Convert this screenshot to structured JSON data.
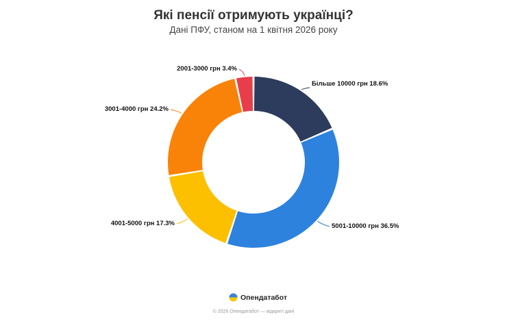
{
  "chart_data": {
    "type": "pie",
    "title": "Які пенсії отримують українці?",
    "subtitle": "Дані ПФУ, станом на 1 квітня 2026 року",
    "slices": [
      {
        "label": "Більше 10000 грн",
        "value": 18.6,
        "value_text": "18.6%",
        "color": "#2d3c5c"
      },
      {
        "label": "5001-10000 грн",
        "value": 36.5,
        "value_text": "36.5%",
        "color": "#2d82de"
      },
      {
        "label": "4001-5000 грн",
        "value": 17.3,
        "value_text": "17.3%",
        "color": "#fdc000"
      },
      {
        "label": "3001-4000 грн",
        "value": 24.2,
        "value_text": "24.2%",
        "color": "#f98308"
      },
      {
        "label": "2001-3000 грн",
        "value": 3.4,
        "value_text": "3.4%",
        "color": "#e83e4c"
      }
    ],
    "legend": "none",
    "donut": true
  },
  "branding": {
    "name": "Опендатабот",
    "footer": "© 2026 Опендатабот — відкриті дані"
  }
}
